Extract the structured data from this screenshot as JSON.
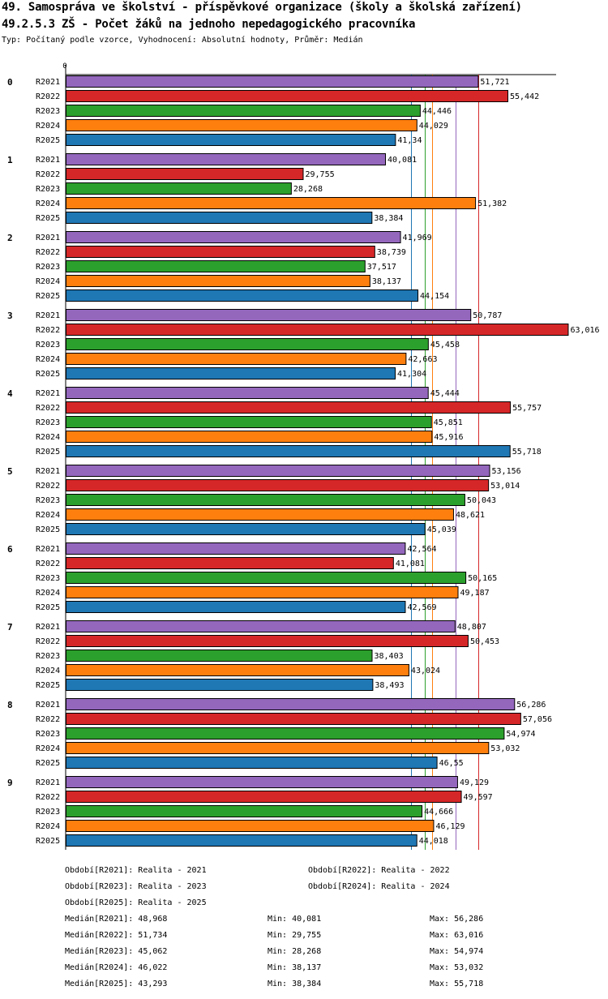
{
  "title": "49. Samospráva ve školství - příspěvkové organizace (školy a školská zařízení)",
  "subtitle": "49.2.5.3 ZŠ - Počet žáků na jednoho nepedagogického pracovníka",
  "typeline": "Typ: Počítaný podle vzorce, Vyhodnocení: Absolutní hodnoty, Průměr: Medián",
  "chart_data": {
    "type": "bar",
    "orientation": "horizontal",
    "axis_zero_label": "0",
    "xlim": [
      0,
      64
    ],
    "groups": [
      "0",
      "1",
      "2",
      "3",
      "4",
      "5",
      "6",
      "7",
      "8",
      "9"
    ],
    "series_names": [
      "R2021",
      "R2022",
      "R2023",
      "R2024",
      "R2025"
    ],
    "colors": {
      "R2021": "#9467bd",
      "R2022": "#d62728",
      "R2023": "#2ca02c",
      "R2024": "#ff7f0e",
      "R2025": "#1f77b4"
    },
    "values": [
      [
        51.721,
        55.442,
        44.446,
        44.029,
        41.34
      ],
      [
        40.081,
        29.755,
        28.268,
        51.382,
        38.384
      ],
      [
        41.969,
        38.739,
        37.517,
        38.137,
        44.154
      ],
      [
        50.787,
        63.016,
        45.458,
        42.663,
        41.304
      ],
      [
        45.444,
        55.757,
        45.851,
        45.916,
        55.718
      ],
      [
        53.156,
        53.014,
        50.043,
        48.621,
        45.039
      ],
      [
        42.564,
        41.081,
        50.165,
        49.187,
        42.569
      ],
      [
        48.807,
        50.453,
        38.403,
        43.024,
        38.493
      ],
      [
        56.286,
        57.056,
        54.974,
        53.032,
        46.55
      ],
      [
        49.129,
        49.597,
        44.666,
        46.129,
        44.018
      ]
    ],
    "value_labels": [
      [
        "51,721",
        "55,442",
        "44,446",
        "44,029",
        "41,34"
      ],
      [
        "40,081",
        "29,755",
        "28,268",
        "51,382",
        "38,384"
      ],
      [
        "41,969",
        "38,739",
        "37,517",
        "38,137",
        "44,154"
      ],
      [
        "50,787",
        "63,016",
        "45,458",
        "42,663",
        "41,304"
      ],
      [
        "45,444",
        "55,757",
        "45,851",
        "45,916",
        "55,718"
      ],
      [
        "53,156",
        "53,014",
        "50,043",
        "48,621",
        "45,039"
      ],
      [
        "42,564",
        "41,081",
        "50,165",
        "49,187",
        "42,569"
      ],
      [
        "48,807",
        "50,453",
        "38,403",
        "43,024",
        "38,493"
      ],
      [
        "56,286",
        "57,056",
        "54,974",
        "53,032",
        "46,55"
      ],
      [
        "49,129",
        "49,597",
        "44,666",
        "46,129",
        "44,018"
      ]
    ],
    "reference_lines": [
      {
        "series": "R2025",
        "value": 43.293
      },
      {
        "series": "R2023",
        "value": 45.062
      },
      {
        "series": "R2024",
        "value": 46.022
      },
      {
        "series": "R2021",
        "value": 48.968
      },
      {
        "series": "R2022",
        "value": 51.734
      }
    ]
  },
  "legend": {
    "periods": [
      "Období[R2021]: Realita - 2021",
      "Období[R2022]: Realita - 2022",
      "Období[R2023]: Realita - 2023",
      "Období[R2024]: Realita - 2024",
      "Období[R2025]: Realita - 2025"
    ],
    "stats": [
      {
        "median": "Medián[R2021]: 48,968",
        "min": "Min: 40,081",
        "max": "Max: 56,286"
      },
      {
        "median": "Medián[R2022]: 51,734",
        "min": "Min: 29,755",
        "max": "Max: 63,016"
      },
      {
        "median": "Medián[R2023]: 45,062",
        "min": "Min: 28,268",
        "max": "Max: 54,974"
      },
      {
        "median": "Medián[R2024]: 46,022",
        "min": "Min: 38,137",
        "max": "Max: 53,032"
      },
      {
        "median": "Medián[R2025]: 43,293",
        "min": "Min: 38,384",
        "max": "Max: 55,718"
      }
    ]
  }
}
